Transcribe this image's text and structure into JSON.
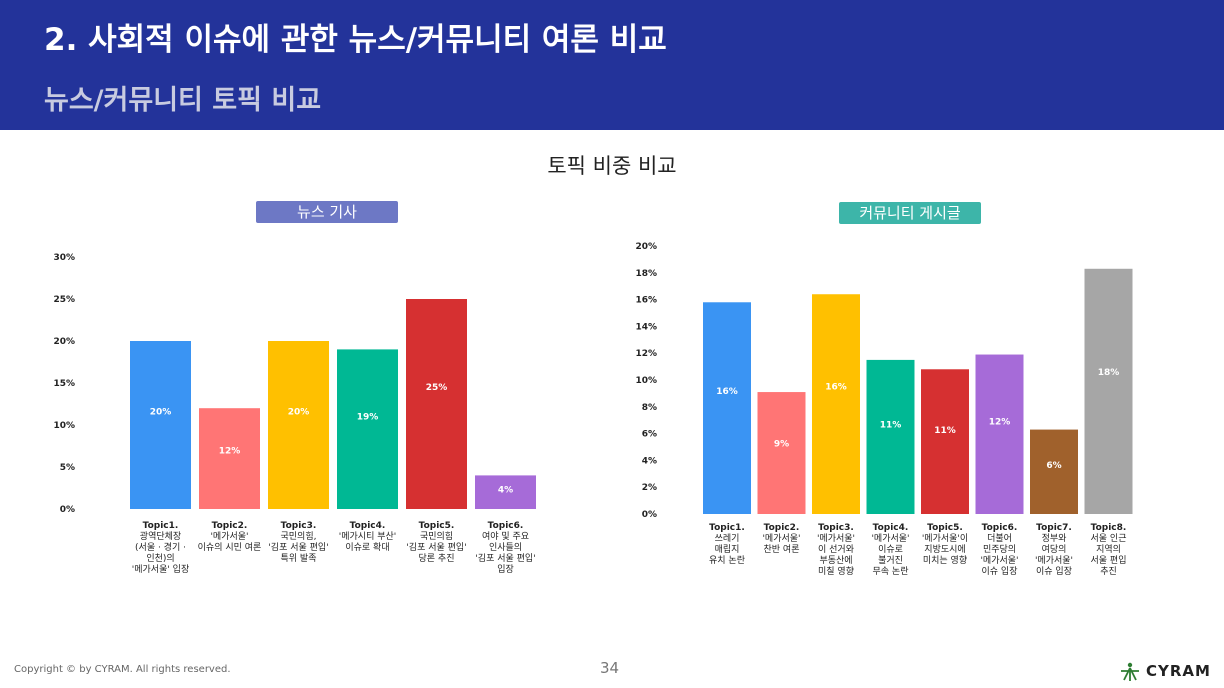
{
  "header": {
    "title": "2. 사회적 이슈에 관한 뉴스/커뮤니티 여론 비교",
    "subtitle": "뉴스/커뮤니티 토픽 비교"
  },
  "section_title": "토픽 비중 비교",
  "footer": {
    "copyright": "Copyright © by CYRAM. All rights reserved.",
    "page_number": "34",
    "logo": "CYRAM"
  },
  "colors": {
    "header_bg": "#23339a",
    "news_pill": "#6d78c5",
    "community_pill": "#3db5a9"
  },
  "chart_data": [
    {
      "type": "bar",
      "title": "뉴스 기사",
      "ylim": [
        0,
        30
      ],
      "yticks": [
        "0%",
        "5%",
        "10%",
        "15%",
        "20%",
        "25%",
        "30%"
      ],
      "categories": [
        [
          "Topic1.",
          "광역단체장",
          "(서울 · 경기 ·",
          "인천)의",
          "'메가서울' 입장"
        ],
        [
          "Topic2.",
          "'메가서울'",
          "이슈의 시민 여론"
        ],
        [
          "Topic3.",
          "국민의힘,",
          "'김포 서울 편입'",
          "특위 발족"
        ],
        [
          "Topic4.",
          "'메가시티 부산'",
          "이슈로 확대"
        ],
        [
          "Topic5.",
          "국민의힘",
          "'김포 서울 편입'",
          "당론 추진"
        ],
        [
          "Topic6.",
          "여야 및 주요",
          "인사들의",
          "'김포 서울 편입'",
          "입장"
        ]
      ],
      "values": [
        20,
        12,
        20,
        19,
        25,
        4
      ],
      "labels": [
        "20%",
        "12%",
        "20%",
        "19%",
        "25%",
        "4%"
      ],
      "colors": [
        "#3a94f3",
        "#ff7575",
        "#ffc000",
        "#00b894",
        "#d63031",
        "#a66bd8"
      ]
    },
    {
      "type": "bar",
      "title": "커뮤니티 게시글",
      "ylim": [
        0,
        20
      ],
      "yticks": [
        "0%",
        "2%",
        "4%",
        "6%",
        "8%",
        "10%",
        "12%",
        "14%",
        "16%",
        "18%",
        "20%"
      ],
      "categories": [
        [
          "Topic1.",
          "쓰레기",
          "매립지",
          "유치 논란"
        ],
        [
          "Topic2.",
          "'메가서울'",
          "찬반 여론"
        ],
        [
          "Topic3.",
          "'메가서울'",
          "이 선거와",
          "부동산에",
          "미칠 영향"
        ],
        [
          "Topic4.",
          "'메가서울'",
          "이슈로",
          "불거진",
          "무속 논란"
        ],
        [
          "Topic5.",
          "'메가서울'이",
          "지방도시에",
          "미치는 영향"
        ],
        [
          "Topic6.",
          "더불어",
          "민주당의",
          "'메가서울'",
          "이슈 입장"
        ],
        [
          "Topic7.",
          "정부와",
          "여당의",
          "'메가서울'",
          "이슈 입장"
        ],
        [
          "Topic8.",
          "서울 인근",
          "지역의",
          "서울 편입",
          "추진"
        ]
      ],
      "values": [
        15.8,
        9.1,
        16.4,
        11.5,
        10.8,
        11.9,
        6.3,
        18.3
      ],
      "labels": [
        "16%",
        "9%",
        "16%",
        "11%",
        "11%",
        "12%",
        "6%",
        "18%"
      ],
      "colors": [
        "#3a94f3",
        "#ff7575",
        "#ffc000",
        "#00b894",
        "#d63031",
        "#a66bd8",
        "#a0612c",
        "#a6a6a6"
      ]
    }
  ]
}
